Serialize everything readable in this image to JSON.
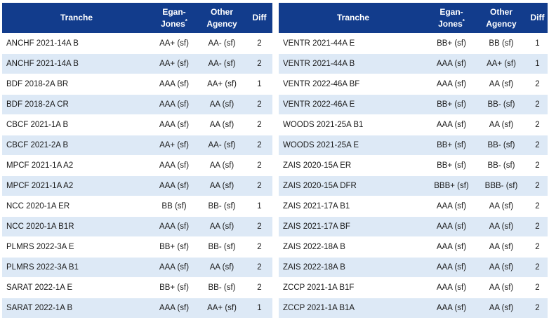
{
  "headers": {
    "tranche": "Tranche",
    "egan_line1": "Egan-",
    "egan_line2": "Jones",
    "egan_mark": "*",
    "other_line1": "Other",
    "other_line2": "Agency",
    "diff": "Diff"
  },
  "colors": {
    "header_bg": "#123c8c",
    "stripe": "#dde9f6",
    "text": "#1a1a1a"
  },
  "left_rows": [
    {
      "tranche": "ANCHF 2021-14A B",
      "egan": "AA+ (sf)",
      "other": "AA- (sf)",
      "diff": "2"
    },
    {
      "tranche": "ANCHF 2021-14A B",
      "egan": "AA+ (sf)",
      "other": "AA- (sf)",
      "diff": "2"
    },
    {
      "tranche": "BDF 2018-2A BR",
      "egan": "AAA (sf)",
      "other": "AA+ (sf)",
      "diff": "1"
    },
    {
      "tranche": "BDF 2018-2A CR",
      "egan": "AAA (sf)",
      "other": "AA (sf)",
      "diff": "2"
    },
    {
      "tranche": "CBCF 2021-1A B",
      "egan": "AAA (sf)",
      "other": "AA (sf)",
      "diff": "2"
    },
    {
      "tranche": "CBCF 2021-2A B",
      "egan": "AA+ (sf)",
      "other": "AA- (sf)",
      "diff": "2"
    },
    {
      "tranche": "MPCF 2021-1A A2",
      "egan": "AAA (sf)",
      "other": "AA (sf)",
      "diff": "2"
    },
    {
      "tranche": "MPCF 2021-1A A2",
      "egan": "AAA (sf)",
      "other": "AA (sf)",
      "diff": "2"
    },
    {
      "tranche": "NCC 2020-1A ER",
      "egan": "BB (sf)",
      "other": "BB- (sf)",
      "diff": "1"
    },
    {
      "tranche": "NCC 2020-1A B1R",
      "egan": "AAA (sf)",
      "other": "AA (sf)",
      "diff": "2"
    },
    {
      "tranche": "PLMRS 2022-3A E",
      "egan": "BB+ (sf)",
      "other": "BB- (sf)",
      "diff": "2"
    },
    {
      "tranche": "PLMRS 2022-3A B1",
      "egan": "AAA (sf)",
      "other": "AA (sf)",
      "diff": "2"
    },
    {
      "tranche": "SARAT 2022-1A E",
      "egan": "BB+ (sf)",
      "other": "BB- (sf)",
      "diff": "2"
    },
    {
      "tranche": "SARAT 2022-1A B",
      "egan": "AAA (sf)",
      "other": "AA+ (sf)",
      "diff": "1"
    }
  ],
  "right_rows": [
    {
      "tranche": "VENTR 2021-44A E",
      "egan": "BB+ (sf)",
      "other": "BB (sf)",
      "diff": "1"
    },
    {
      "tranche": "VENTR 2021-44A B",
      "egan": "AAA (sf)",
      "other": "AA+ (sf)",
      "diff": "1"
    },
    {
      "tranche": "VENTR 2022-46A BF",
      "egan": "AAA (sf)",
      "other": "AA (sf)",
      "diff": "2"
    },
    {
      "tranche": "VENTR 2022-46A E",
      "egan": "BB+ (sf)",
      "other": "BB- (sf)",
      "diff": "2"
    },
    {
      "tranche": "WOODS 2021-25A B1",
      "egan": "AAA (sf)",
      "other": "AA (sf)",
      "diff": "2"
    },
    {
      "tranche": "WOODS 2021-25A E",
      "egan": "BB+ (sf)",
      "other": "BB- (sf)",
      "diff": "2"
    },
    {
      "tranche": "ZAIS 2020-15A ER",
      "egan": "BB+ (sf)",
      "other": "BB- (sf)",
      "diff": "2"
    },
    {
      "tranche": "ZAIS 2020-15A DFR",
      "egan": "BBB+ (sf)",
      "other": "BBB- (sf)",
      "diff": "2"
    },
    {
      "tranche": "ZAIS 2021-17A B1",
      "egan": "AAA (sf)",
      "other": "AA (sf)",
      "diff": "2"
    },
    {
      "tranche": "ZAIS 2021-17A BF",
      "egan": "AAA (sf)",
      "other": "AA (sf)",
      "diff": "2"
    },
    {
      "tranche": "ZAIS 2022-18A B",
      "egan": "AAA (sf)",
      "other": "AA (sf)",
      "diff": "2"
    },
    {
      "tranche": "ZAIS 2022-18A B",
      "egan": "AAA (sf)",
      "other": "AA (sf)",
      "diff": "2"
    },
    {
      "tranche": "ZCCP 2021-1A B1F",
      "egan": "AAA (sf)",
      "other": "AA (sf)",
      "diff": "2"
    },
    {
      "tranche": "ZCCP 2021-1A B1A",
      "egan": "AAA (sf)",
      "other": "AA (sf)",
      "diff": "2"
    }
  ]
}
